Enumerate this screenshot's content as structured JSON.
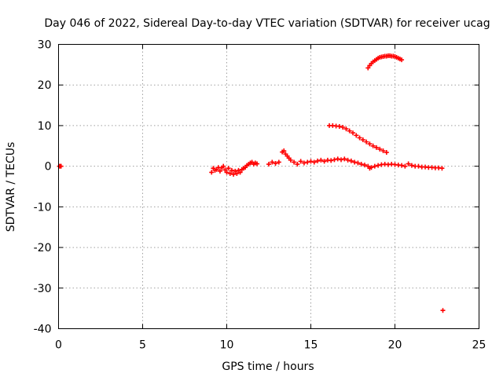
{
  "chart_data": {
    "type": "scatter",
    "title": "Day 046 of 2022, Sidereal Day-to-day VTEC variation (SDTVAR) for receiver ucag",
    "xlabel": "GPS time / hours",
    "ylabel": "SDTVAR / TECUs",
    "xlim": [
      0,
      25
    ],
    "ylim": [
      -40,
      30
    ],
    "xticks": [
      0,
      5,
      10,
      15,
      20,
      25
    ],
    "yticks": [
      -40,
      -30,
      -20,
      -10,
      0,
      10,
      20,
      30
    ],
    "grid": true,
    "marker": "+",
    "color": "#ff0000",
    "series": [
      {
        "name": "isolated-early",
        "points": [
          [
            0.05,
            0.0
          ],
          [
            0.1,
            0.0
          ],
          [
            0.15,
            0.0
          ]
        ]
      },
      {
        "name": "cluster-9-12h",
        "points": [
          [
            9.1,
            -1.5
          ],
          [
            9.2,
            -0.5
          ],
          [
            9.3,
            -1.0
          ],
          [
            9.4,
            -0.8
          ],
          [
            9.5,
            -0.3
          ],
          [
            9.6,
            -1.2
          ],
          [
            9.7,
            -0.4
          ],
          [
            9.8,
            0.0
          ],
          [
            9.9,
            -0.9
          ],
          [
            10.0,
            -1.5
          ],
          [
            10.1,
            -0.5
          ],
          [
            10.2,
            -1.8
          ],
          [
            10.3,
            -1.0
          ],
          [
            10.4,
            -2.0
          ],
          [
            10.5,
            -1.2
          ],
          [
            10.6,
            -1.8
          ],
          [
            10.7,
            -1.0
          ],
          [
            10.8,
            -1.5
          ],
          [
            10.9,
            -0.8
          ],
          [
            11.0,
            -0.5
          ],
          [
            11.1,
            -0.3
          ],
          [
            11.2,
            0.2
          ],
          [
            11.3,
            0.5
          ],
          [
            11.4,
            0.8
          ],
          [
            11.5,
            1.0
          ],
          [
            11.6,
            0.5
          ],
          [
            11.7,
            0.8
          ],
          [
            11.8,
            0.6
          ]
        ]
      },
      {
        "name": "main-band-12-23h",
        "points": [
          [
            12.5,
            0.5
          ],
          [
            12.7,
            1.0
          ],
          [
            12.9,
            0.7
          ],
          [
            13.1,
            1.0
          ],
          [
            13.3,
            3.5
          ],
          [
            13.4,
            3.8
          ],
          [
            13.5,
            3.0
          ],
          [
            13.6,
            2.5
          ],
          [
            13.7,
            2.0
          ],
          [
            13.8,
            1.5
          ],
          [
            14.0,
            1.0
          ],
          [
            14.2,
            0.5
          ],
          [
            14.4,
            1.2
          ],
          [
            14.6,
            0.8
          ],
          [
            14.8,
            1.0
          ],
          [
            15.0,
            1.2
          ],
          [
            15.2,
            1.0
          ],
          [
            15.4,
            1.3
          ],
          [
            15.6,
            1.5
          ],
          [
            15.8,
            1.2
          ],
          [
            16.0,
            1.5
          ],
          [
            16.2,
            1.4
          ],
          [
            16.4,
            1.6
          ],
          [
            16.6,
            1.8
          ],
          [
            16.8,
            1.6
          ],
          [
            17.0,
            1.8
          ],
          [
            17.2,
            1.5
          ],
          [
            17.4,
            1.3
          ],
          [
            17.6,
            1.0
          ],
          [
            17.8,
            0.8
          ],
          [
            18.0,
            0.5
          ],
          [
            18.2,
            0.3
          ],
          [
            18.4,
            0.0
          ],
          [
            18.5,
            -0.5
          ],
          [
            18.6,
            -0.3
          ],
          [
            18.8,
            0.0
          ],
          [
            19.0,
            0.2
          ],
          [
            19.2,
            0.4
          ],
          [
            19.4,
            0.5
          ],
          [
            19.6,
            0.4
          ],
          [
            19.8,
            0.5
          ],
          [
            20.0,
            0.4
          ],
          [
            20.2,
            0.3
          ],
          [
            20.4,
            0.2
          ],
          [
            20.6,
            0.0
          ],
          [
            20.8,
            0.6
          ],
          [
            21.0,
            0.2
          ],
          [
            21.2,
            0.0
          ],
          [
            21.4,
            0.0
          ],
          [
            21.6,
            -0.2
          ],
          [
            21.8,
            -0.2
          ],
          [
            22.0,
            -0.3
          ],
          [
            22.2,
            -0.3
          ],
          [
            22.4,
            -0.4
          ],
          [
            22.6,
            -0.4
          ],
          [
            22.8,
            -0.5
          ]
        ]
      },
      {
        "name": "descending-arc",
        "points": [
          [
            16.1,
            10.0
          ],
          [
            16.3,
            10.0
          ],
          [
            16.5,
            9.9
          ],
          [
            16.7,
            9.8
          ],
          [
            16.9,
            9.6
          ],
          [
            17.1,
            9.2
          ],
          [
            17.3,
            8.7
          ],
          [
            17.5,
            8.2
          ],
          [
            17.7,
            7.6
          ],
          [
            17.9,
            7.0
          ],
          [
            18.1,
            6.5
          ],
          [
            18.3,
            6.0
          ],
          [
            18.5,
            5.5
          ],
          [
            18.7,
            5.0
          ],
          [
            18.9,
            4.6
          ],
          [
            19.1,
            4.2
          ],
          [
            19.3,
            3.8
          ],
          [
            19.5,
            3.4
          ]
        ]
      },
      {
        "name": "upper-arc",
        "points": [
          [
            18.4,
            24.2
          ],
          [
            18.5,
            24.8
          ],
          [
            18.6,
            25.3
          ],
          [
            18.7,
            25.7
          ],
          [
            18.8,
            26.0
          ],
          [
            18.9,
            26.3
          ],
          [
            19.0,
            26.6
          ],
          [
            19.1,
            26.8
          ],
          [
            19.2,
            26.9
          ],
          [
            19.3,
            27.0
          ],
          [
            19.4,
            27.1
          ],
          [
            19.5,
            27.1
          ],
          [
            19.6,
            27.2
          ],
          [
            19.7,
            27.2
          ],
          [
            19.8,
            27.1
          ],
          [
            19.9,
            27.1
          ],
          [
            20.0,
            27.0
          ],
          [
            20.1,
            26.8
          ],
          [
            20.2,
            26.6
          ],
          [
            20.3,
            26.4
          ],
          [
            20.4,
            26.2
          ]
        ]
      },
      {
        "name": "outlier",
        "points": [
          [
            22.85,
            -35.5
          ]
        ]
      }
    ]
  }
}
